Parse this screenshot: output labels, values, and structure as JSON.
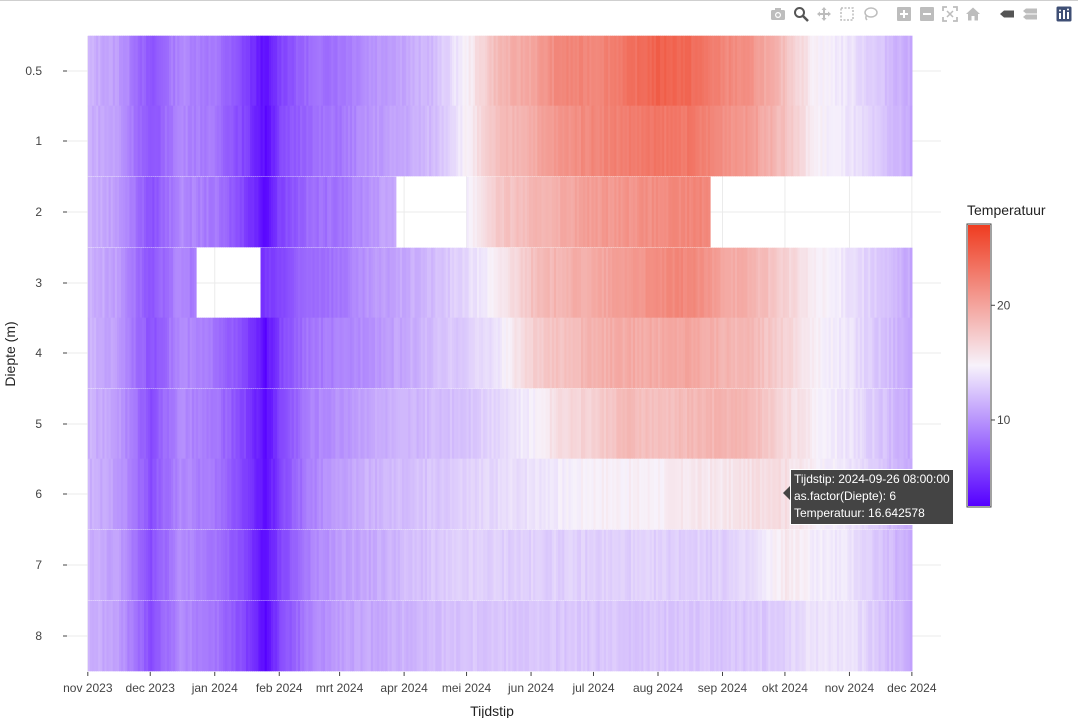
{
  "modebar": {
    "icons": [
      "camera-icon",
      "zoom-icon",
      "pan-icon",
      "box-select-icon",
      "lasso-icon",
      "zoom-in-icon",
      "zoom-out-icon",
      "autoscale-icon",
      "home-icon",
      "spike-lines-icon",
      "compare-hover-icon",
      "plotly-logo-icon"
    ]
  },
  "colors": {
    "low": "#5500ff",
    "mid": "#f7f2fb",
    "high": "#ef3c20",
    "grid": "#ebebeb",
    "tooltip_bg": "#444444"
  },
  "tooltip": {
    "line1": "Tijdstip: 2024-09-26 08:00:00",
    "line2": "as.factor(Diepte): 6",
    "line3": "Temperatuur: 16.642578"
  },
  "chart_data": {
    "type": "heatmap",
    "xlabel": "Tijdstip",
    "ylabel": "Diepte (m)",
    "x_tick_labels": [
      "nov 2023",
      "dec 2023",
      "jan 2024",
      "feb 2024",
      "mrt 2024",
      "apr 2024",
      "mei 2024",
      "jun 2024",
      "jul 2024",
      "aug 2024",
      "sep 2024",
      "okt 2024",
      "nov 2024",
      "dec 2024"
    ],
    "x_ticks": [
      "2023-11-01",
      "2023-12-01",
      "2024-01-01",
      "2024-02-01",
      "2024-03-01",
      "2024-04-01",
      "2024-05-01",
      "2024-06-01",
      "2024-07-01",
      "2024-08-01",
      "2024-09-01",
      "2024-10-01",
      "2024-11-01",
      "2024-12-01"
    ],
    "xlim": [
      "2023-10-22",
      "2024-12-15"
    ],
    "y_categories": [
      "0.5",
      "1",
      "2",
      "3",
      "4",
      "5",
      "6",
      "7",
      "8"
    ],
    "y_ticks": [
      0.5,
      1,
      2,
      3,
      4,
      5,
      6,
      7,
      8
    ],
    "legend_title": "Temperatuur",
    "colorbar_ticks": [
      10,
      20
    ],
    "color_range": [
      2.5,
      27
    ],
    "data_start": "2023-11-01",
    "data_end": "2024-11-30",
    "gaps": [
      {
        "depth": "2",
        "from": "2023-10-31",
        "to": "2023-11-01"
      },
      {
        "depth": "2",
        "from": "2024-03-28",
        "to": "2024-05-01"
      },
      {
        "depth": "2",
        "from": "2024-08-26",
        "to": "2024-12-01"
      },
      {
        "depth": "3",
        "from": "2023-12-23",
        "to": "2024-01-23"
      },
      {
        "depth": "5",
        "from": "2023-10-31",
        "to": "2023-11-01"
      }
    ],
    "series": [
      {
        "name": "0.5",
        "x": [
          "2023-11-01",
          "2023-11-15",
          "2023-12-01",
          "2023-12-15",
          "2024-01-01",
          "2024-01-15",
          "2024-01-25",
          "2024-02-01",
          "2024-02-15",
          "2024-03-01",
          "2024-03-15",
          "2024-04-01",
          "2024-04-15",
          "2024-05-01",
          "2024-05-15",
          "2024-06-01",
          "2024-06-15",
          "2024-07-01",
          "2024-07-15",
          "2024-08-01",
          "2024-08-15",
          "2024-09-01",
          "2024-09-15",
          "2024-10-01",
          "2024-10-15",
          "2024-11-01",
          "2024-11-15",
          "2024-11-30"
        ],
        "values": [
          11.5,
          10.5,
          6.5,
          9.5,
          8.5,
          6,
          3,
          6,
          8,
          8.5,
          10,
          11,
          12,
          15,
          18.5,
          20,
          22,
          22,
          23,
          24.5,
          24,
          22,
          21,
          18,
          15,
          14,
          12.5,
          11
        ]
      },
      {
        "name": "1",
        "x": [
          "2023-11-01",
          "2023-11-15",
          "2023-12-01",
          "2023-12-15",
          "2024-01-01",
          "2024-01-15",
          "2024-01-25",
          "2024-02-01",
          "2024-02-15",
          "2024-03-01",
          "2024-03-15",
          "2024-04-01",
          "2024-04-15",
          "2024-05-01",
          "2024-05-15",
          "2024-06-01",
          "2024-06-15",
          "2024-07-01",
          "2024-07-15",
          "2024-08-01",
          "2024-08-15",
          "2024-09-01",
          "2024-09-15",
          "2024-10-01",
          "2024-10-15",
          "2024-11-01",
          "2024-11-15",
          "2024-11-30"
        ],
        "values": [
          11.5,
          10.5,
          6.5,
          9.5,
          8.5,
          6,
          3,
          6,
          8,
          8.5,
          10,
          11,
          12,
          15,
          18,
          19.5,
          21,
          22,
          22.5,
          23,
          23,
          21.5,
          20.5,
          18,
          15,
          14,
          12.5,
          11
        ]
      },
      {
        "name": "2",
        "x": [
          "2023-11-01",
          "2023-11-15",
          "2023-12-01",
          "2023-12-15",
          "2024-01-01",
          "2024-01-15",
          "2024-01-25",
          "2024-02-01",
          "2024-02-15",
          "2024-03-01",
          "2024-03-15",
          "2024-05-01",
          "2024-05-15",
          "2024-06-01",
          "2024-06-15",
          "2024-07-01",
          "2024-07-15",
          "2024-08-01",
          "2024-08-20"
        ],
        "values": [
          11.5,
          10.5,
          6.5,
          9.5,
          8.5,
          6,
          3,
          6,
          8,
          8.5,
          10,
          14.5,
          17.5,
          18.5,
          19.5,
          20.5,
          21,
          21.5,
          22
        ]
      },
      {
        "name": "3",
        "x": [
          "2023-11-01",
          "2023-11-15",
          "2023-12-01",
          "2023-12-15",
          "2024-01-23",
          "2024-02-01",
          "2024-02-15",
          "2024-03-01",
          "2024-03-15",
          "2024-04-01",
          "2024-04-15",
          "2024-05-01",
          "2024-05-15",
          "2024-06-01",
          "2024-06-15",
          "2024-07-01",
          "2024-07-15",
          "2024-08-01",
          "2024-08-15",
          "2024-09-01",
          "2024-09-15",
          "2024-10-01",
          "2024-10-15",
          "2024-11-01",
          "2024-11-15",
          "2024-11-30"
        ],
        "values": [
          11.5,
          10.5,
          6.5,
          9.5,
          5,
          6,
          8,
          8.5,
          10,
          11,
          12,
          13.5,
          15,
          18,
          19,
          19.5,
          20.5,
          21.5,
          22,
          20,
          19,
          17,
          15,
          14,
          12.5,
          11
        ]
      },
      {
        "name": "4",
        "x": [
          "2023-11-01",
          "2023-11-15",
          "2023-12-01",
          "2023-12-15",
          "2024-01-01",
          "2024-01-15",
          "2024-01-25",
          "2024-02-01",
          "2024-02-15",
          "2024-03-01",
          "2024-03-15",
          "2024-04-01",
          "2024-04-15",
          "2024-05-01",
          "2024-05-15",
          "2024-06-01",
          "2024-06-15",
          "2024-07-01",
          "2024-07-15",
          "2024-08-01",
          "2024-08-15",
          "2024-09-01",
          "2024-09-15",
          "2024-10-01",
          "2024-10-15",
          "2024-11-01",
          "2024-11-15",
          "2024-11-30"
        ],
        "values": [
          11.5,
          10.5,
          6.5,
          9.5,
          8.5,
          6,
          3,
          6,
          8.5,
          9,
          10,
          11,
          12,
          13,
          14,
          17,
          18,
          19,
          19.5,
          19.5,
          20,
          19,
          18.5,
          17,
          15,
          14,
          12.5,
          11
        ]
      },
      {
        "name": "5",
        "x": [
          "2023-11-01",
          "2023-11-15",
          "2023-12-01",
          "2023-12-15",
          "2024-01-01",
          "2024-01-15",
          "2024-01-25",
          "2024-02-01",
          "2024-02-15",
          "2024-03-01",
          "2024-03-15",
          "2024-04-01",
          "2024-04-15",
          "2024-05-01",
          "2024-05-15",
          "2024-06-01",
          "2024-06-15",
          "2024-07-01",
          "2024-07-15",
          "2024-08-01",
          "2024-08-15",
          "2024-09-01",
          "2024-09-15",
          "2024-10-01",
          "2024-10-15",
          "2024-11-01",
          "2024-11-15",
          "2024-11-30"
        ],
        "values": [
          11.5,
          10.5,
          6.5,
          9.5,
          8.5,
          6,
          3,
          6,
          9,
          10,
          11,
          11.5,
          12,
          12.5,
          13.5,
          14.5,
          16.5,
          17,
          18.5,
          18,
          18.5,
          19,
          18.5,
          16.5,
          15,
          14,
          12.5,
          11
        ]
      },
      {
        "name": "6",
        "x": [
          "2023-11-01",
          "2023-11-15",
          "2023-12-01",
          "2023-12-15",
          "2024-01-01",
          "2024-01-15",
          "2024-01-25",
          "2024-02-01",
          "2024-02-15",
          "2024-03-01",
          "2024-03-15",
          "2024-04-01",
          "2024-04-15",
          "2024-05-01",
          "2024-05-15",
          "2024-06-01",
          "2024-06-15",
          "2024-07-01",
          "2024-07-15",
          "2024-08-01",
          "2024-08-15",
          "2024-09-01",
          "2024-09-15",
          "2024-09-26",
          "2024-10-01",
          "2024-10-15",
          "2024-11-01",
          "2024-11-15",
          "2024-11-30"
        ],
        "values": [
          11.5,
          10.5,
          6.5,
          9.5,
          8.5,
          6,
          3,
          6,
          9,
          10.5,
          11.5,
          12,
          12.5,
          13,
          13.5,
          14,
          14.5,
          15,
          15,
          15,
          15.5,
          15.5,
          16,
          16.6,
          16,
          15,
          14,
          12.5,
          11
        ]
      },
      {
        "name": "7",
        "x": [
          "2023-11-01",
          "2023-11-15",
          "2023-12-01",
          "2023-12-15",
          "2024-01-01",
          "2024-01-15",
          "2024-01-25",
          "2024-02-01",
          "2024-02-15",
          "2024-03-01",
          "2024-03-15",
          "2024-04-01",
          "2024-04-15",
          "2024-05-01",
          "2024-05-15",
          "2024-06-01",
          "2024-06-15",
          "2024-07-01",
          "2024-07-15",
          "2024-08-01",
          "2024-08-15",
          "2024-09-01",
          "2024-09-15",
          "2024-10-01",
          "2024-10-15",
          "2024-11-01",
          "2024-11-15",
          "2024-11-30"
        ],
        "values": [
          11.5,
          10.5,
          6.5,
          9.5,
          8.5,
          6,
          3,
          6,
          9,
          10.5,
          11,
          12,
          12.5,
          13,
          13,
          13,
          13,
          13,
          13,
          13,
          13,
          13,
          13.5,
          15.5,
          14.5,
          14,
          12.5,
          11
        ]
      },
      {
        "name": "8",
        "x": [
          "2023-11-01",
          "2023-11-15",
          "2023-12-01",
          "2023-12-15",
          "2024-01-01",
          "2024-01-15",
          "2024-01-25",
          "2024-02-01",
          "2024-02-15",
          "2024-03-01",
          "2024-03-15",
          "2024-04-01",
          "2024-04-15",
          "2024-05-01",
          "2024-05-15",
          "2024-06-01",
          "2024-06-15",
          "2024-07-01",
          "2024-07-15",
          "2024-08-01",
          "2024-08-15",
          "2024-09-01",
          "2024-09-15",
          "2024-10-01",
          "2024-10-15",
          "2024-11-01",
          "2024-11-15",
          "2024-11-30"
        ],
        "values": [
          11.5,
          10.5,
          6.5,
          9.5,
          8.5,
          6,
          3,
          6,
          9,
          10.5,
          11,
          11.5,
          12,
          12.5,
          12.5,
          12.5,
          12.5,
          12.5,
          12.5,
          12.5,
          12.5,
          12.5,
          12.5,
          13,
          14,
          14,
          12.5,
          11
        ]
      }
    ]
  }
}
